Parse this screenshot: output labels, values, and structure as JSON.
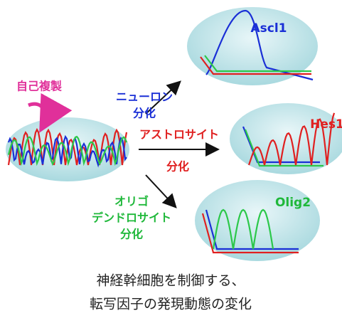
{
  "self_renewal": "自己複製",
  "neuron": {
    "line1": "ニューロン",
    "line2": "分化"
  },
  "astrocyte": {
    "line1": "アストロサイト",
    "line2": "分化"
  },
  "oligodendrocyte": {
    "line1": "オリゴ",
    "line2": "デンドロサイト",
    "line3": "分化"
  },
  "genes": {
    "ascl1": "Ascl1",
    "hes1": "Hes1",
    "olig2": "Olig2"
  },
  "caption": {
    "line1": "神経幹細胞を制御する、",
    "line2": "転写因子の発現動態の変化"
  }
}
